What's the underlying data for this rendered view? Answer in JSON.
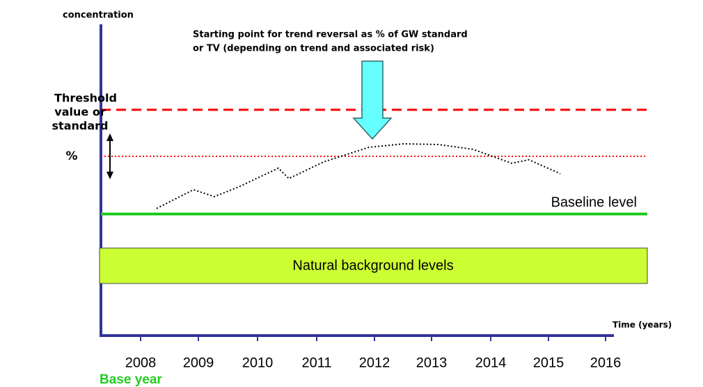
{
  "axis": {
    "y_label": "concentration",
    "x_label": "Time (years)"
  },
  "years": [
    "2008",
    "2009",
    "2010",
    "2011",
    "2012",
    "2013",
    "2014",
    "2015",
    "2016"
  ],
  "base_year": "Base year",
  "annotation": [
    "Starting point for trend reversal as % of GW standard",
    "or TV (depending on trend and associated risk)"
  ],
  "threshold": [
    "Threshold",
    "value or",
    "standard"
  ],
  "percent": "%",
  "baseline": "Baseline level",
  "background": "Natural background levels"
}
